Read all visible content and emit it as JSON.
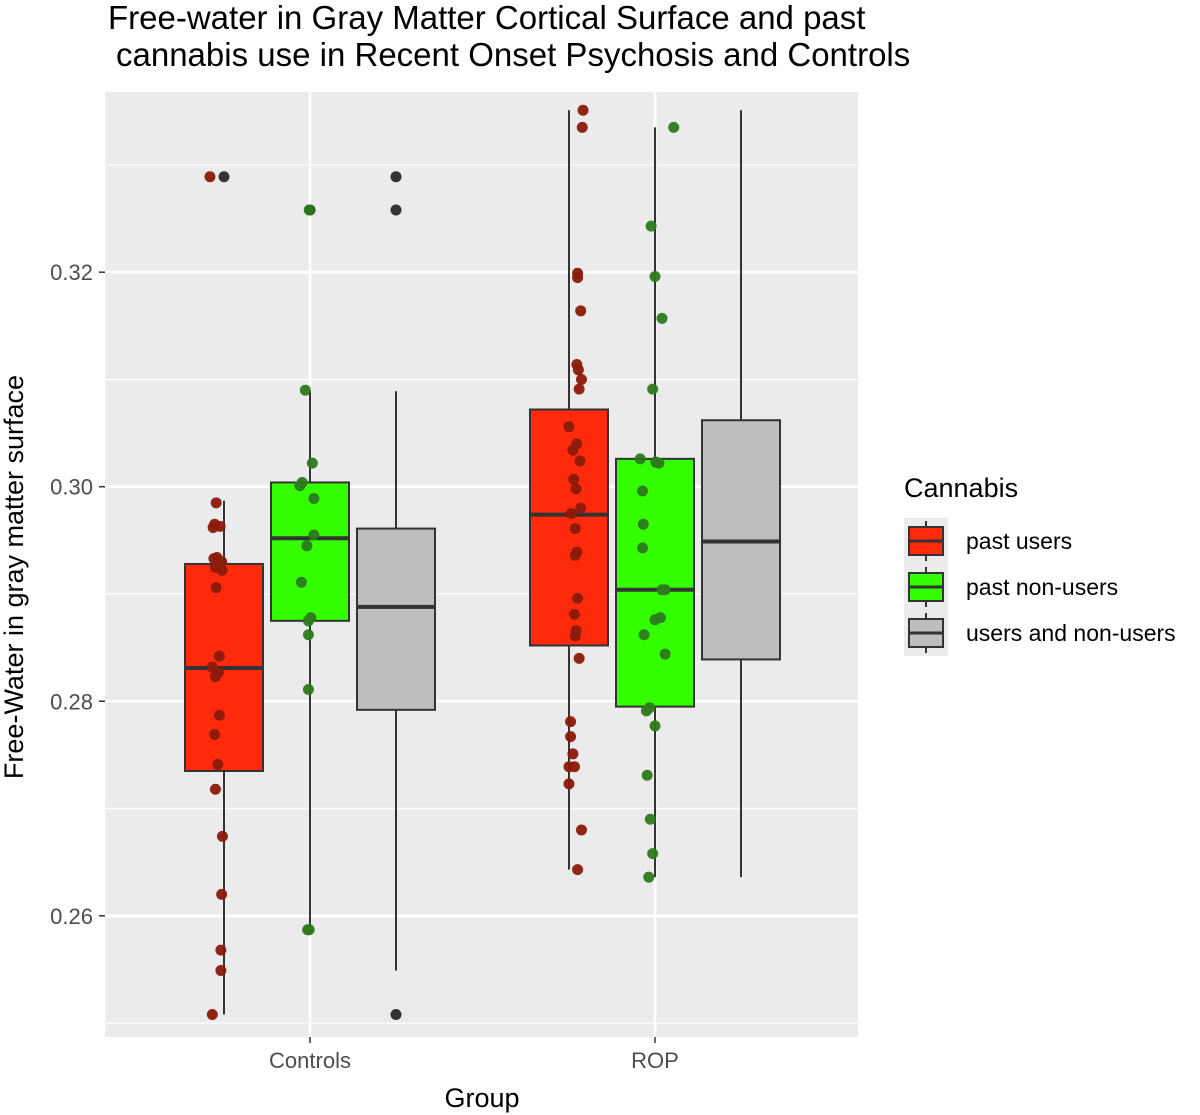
{
  "chart_data": {
    "type": "boxplot",
    "title_lines": [
      "Free-water in Gray Matter Cortical Surface and past",
      "cannabis use in Recent Onset Psychosis and Controls"
    ],
    "xlabel": "Group",
    "ylabel": "Free-Water in gray matter surface",
    "categories": [
      "Controls",
      "ROP"
    ],
    "ylim": [
      0.2487,
      0.3368
    ],
    "y_ticks": [
      0.26,
      0.28,
      0.3,
      0.32
    ],
    "y_tick_labels": [
      "0.26",
      "0.28",
      "0.30",
      "0.32"
    ],
    "y_minor_ticks": [
      0.25,
      0.27,
      0.29,
      0.31,
      0.33
    ],
    "legend": {
      "title": "Cannabis",
      "position": "right",
      "entries": [
        {
          "label": "past users",
          "color": "#ff2a0c"
        },
        {
          "label": "past non-users",
          "color": "#33ff00"
        },
        {
          "label": "users and non-users",
          "color": "#bebebe"
        }
      ]
    },
    "colors": {
      "panel_bg": "#ebebeb",
      "grid": "#ffffff",
      "box_outline": "#333333",
      "point_users": "#8b1a0a",
      "point_nonusers": "#2d7a1e",
      "point_all": "#333333"
    },
    "series": [
      {
        "name": "past users",
        "boxes": [
          {
            "category": "Controls",
            "min": 0.2508,
            "q1": 0.2735,
            "median": 0.2831,
            "q3": 0.2928,
            "max": 0.2987,
            "outliers": [
              0.3289
            ]
          },
          {
            "category": "ROP",
            "min": 0.2643,
            "q1": 0.2852,
            "median": 0.2974,
            "q3": 0.3072,
            "max": 0.3351,
            "outliers": []
          }
        ],
        "points": [
          {
            "category": "Controls",
            "values": [
              0.3289,
              0.2985,
              0.2965,
              0.2963,
              0.2962,
              0.2934,
              0.2933,
              0.293,
              0.2925,
              0.2922,
              0.2906,
              0.2842,
              0.2832,
              0.2827,
              0.2823,
              0.2787,
              0.2769,
              0.2741,
              0.2718,
              0.2674,
              0.262,
              0.2568,
              0.2549,
              0.2508
            ],
            "jitter": [
              -0.36,
              -0.2,
              -0.24,
              -0.1,
              -0.28,
              -0.18,
              -0.26,
              -0.06,
              -0.22,
              -0.05,
              -0.2,
              -0.12,
              -0.3,
              -0.14,
              -0.22,
              -0.12,
              -0.24,
              -0.16,
              -0.22,
              -0.04,
              -0.06,
              -0.08,
              -0.08,
              -0.3
            ]
          },
          {
            "category": "ROP",
            "values": [
              0.3351,
              0.3335,
              0.3199,
              0.3195,
              0.3164,
              0.3114,
              0.3109,
              0.31,
              0.3091,
              0.3056,
              0.304,
              0.3034,
              0.3024,
              0.3007,
              0.2998,
              0.298,
              0.2975,
              0.2961,
              0.2939,
              0.2936,
              0.2896,
              0.2881,
              0.2866,
              0.2861,
              0.284,
              0.2781,
              0.2767,
              0.2751,
              0.2739,
              0.2739,
              0.2723,
              0.268,
              0.2643
            ],
            "jitter": [
              0.36,
              0.34,
              0.22,
              0.22,
              0.3,
              0.2,
              0.24,
              0.32,
              0.26,
              0.0,
              0.2,
              0.1,
              0.28,
              0.12,
              0.18,
              0.3,
              0.06,
              0.16,
              0.2,
              0.16,
              0.22,
              0.14,
              0.18,
              0.16,
              0.26,
              0.04,
              0.04,
              0.1,
              0.14,
              0.0,
              0.0,
              0.32,
              0.22
            ]
          }
        ]
      },
      {
        "name": "past non-users",
        "boxes": [
          {
            "category": "Controls",
            "min": 0.2587,
            "q1": 0.2875,
            "median": 0.2952,
            "q3": 0.3004,
            "max": 0.3089,
            "outliers": [
              0.3258
            ]
          },
          {
            "category": "ROP",
            "min": 0.2636,
            "q1": 0.2795,
            "median": 0.2904,
            "q3": 0.3026,
            "max": 0.3335,
            "outliers": []
          }
        ],
        "points": [
          {
            "category": "Controls",
            "values": [
              0.3258,
              0.309,
              0.3022,
              0.3004,
              0.3001,
              0.2989,
              0.2955,
              0.2945,
              0.2911,
              0.2878,
              0.2875,
              0.2862,
              0.2811,
              0.2587,
              0.2587
            ],
            "jitter": [
              -0.02,
              -0.12,
              0.06,
              -0.2,
              -0.26,
              0.1,
              0.1,
              -0.08,
              -0.22,
              0.02,
              -0.04,
              -0.04,
              -0.04,
              -0.06,
              -0.02
            ],
            "x_offset": -0.6
          },
          {
            "category": "ROP",
            "values": [
              0.3335,
              0.3243,
              0.3196,
              0.3157,
              0.3091,
              0.3026,
              0.3023,
              0.3022,
              0.2996,
              0.2965,
              0.2943,
              0.2904,
              0.2904,
              0.2878,
              0.2876,
              0.2862,
              0.2844,
              0.2794,
              0.2791,
              0.2777,
              0.2731,
              0.269,
              0.2658,
              0.2636
            ],
            "jitter": [
              0.48,
              -0.1,
              0.0,
              0.18,
              -0.06,
              -0.38,
              0.02,
              0.1,
              -0.32,
              -0.3,
              -0.32,
              0.26,
              0.18,
              0.14,
              0.0,
              -0.28,
              0.26,
              -0.14,
              -0.22,
              0.0,
              -0.2,
              -0.12,
              -0.06,
              -0.16
            ]
          }
        ]
      },
      {
        "name": "users and non-users",
        "boxes": [
          {
            "category": "Controls",
            "min": 0.2549,
            "q1": 0.2792,
            "median": 0.2888,
            "q3": 0.2961,
            "max": 0.3089,
            "outliers": [
              0.3289,
              0.3258,
              0.2508
            ]
          },
          {
            "category": "ROP",
            "min": 0.2636,
            "q1": 0.2839,
            "median": 0.2949,
            "q3": 0.3062,
            "max": 0.3351,
            "outliers": []
          }
        ],
        "points": []
      }
    ]
  }
}
